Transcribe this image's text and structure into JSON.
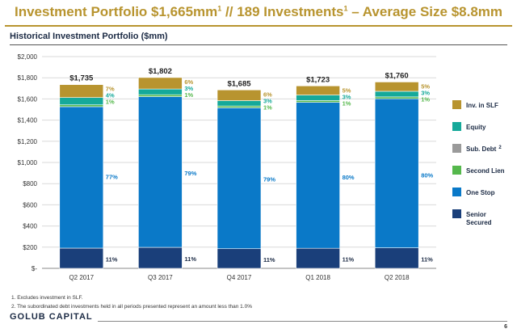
{
  "header": {
    "title_part1": "Investment Portfolio $1,665mm",
    "title_sup1": "1",
    "title_part2": " // 189 Investments",
    "title_sup2": "1",
    "title_part3": " – Average Size $8.8mm",
    "subtitle": "Historical Investment Portfolio ($mm)"
  },
  "chart_data": {
    "type": "bar",
    "stacked": true,
    "categories": [
      "Q2 2017",
      "Q3 2017",
      "Q4 2017",
      "Q1 2018",
      "Q2 2018"
    ],
    "totals": [
      1735,
      1802,
      1685,
      1723,
      1760
    ],
    "total_labels": [
      "$1,735",
      "$1,802",
      "$1,685",
      "$1,723",
      "$1,760"
    ],
    "ylim": [
      0,
      2000
    ],
    "yticks": [
      0,
      200,
      400,
      600,
      800,
      1000,
      1200,
      1400,
      1600,
      1800,
      2000
    ],
    "ytick_labels": [
      "$-",
      "$200",
      "$400",
      "$600",
      "$800",
      "$1,000",
      "$1,200",
      "$1,400",
      "$1,600",
      "$1,800",
      "$2,000"
    ],
    "series": [
      {
        "name": "Senior Secured",
        "color": "#1a3f7a",
        "percents": [
          11,
          11,
          11,
          11,
          11
        ],
        "labels": [
          "11%",
          "11%",
          "11%",
          "11%",
          "11%"
        ],
        "label_color": "#1b2a44"
      },
      {
        "name": "One Stop",
        "color": "#0a79c8",
        "percents": [
          77,
          79,
          79,
          80,
          80
        ],
        "labels": [
          "77%",
          "79%",
          "79%",
          "80%",
          "80%"
        ],
        "label_color": "#0a79c8"
      },
      {
        "name": "Second Lien",
        "color": "#55b84c",
        "percents": [
          1,
          1,
          1,
          1,
          1
        ],
        "labels": [
          "1%",
          "1%",
          "1%",
          "1%",
          "1%"
        ],
        "label_color": "#55b84c"
      },
      {
        "name": "Sub. Debt",
        "legend_sup": "2",
        "color": "#9a9a9a",
        "percents": [
          0,
          0,
          0,
          0,
          0
        ],
        "labels": [
          "",
          "",
          "",
          "",
          ""
        ],
        "label_color": "#9a9a9a"
      },
      {
        "name": "Equity",
        "color": "#15a99a",
        "percents": [
          4,
          3,
          3,
          3,
          3
        ],
        "labels": [
          "4%",
          "3%",
          "3%",
          "3%",
          "3%"
        ],
        "label_color": "#15a99a"
      },
      {
        "name": "Inv. in SLF",
        "color": "#b8942f",
        "percents": [
          7,
          6,
          6,
          5,
          5
        ],
        "labels": [
          "7%",
          "6%",
          "6%",
          "5%",
          "5%"
        ],
        "label_color": "#b8942f"
      }
    ],
    "legend_order": [
      "Inv. in SLF",
      "Equity",
      "Sub. Debt",
      "Second Lien",
      "One Stop",
      "Senior Secured"
    ],
    "legend_position": "right",
    "grid": true
  },
  "footnotes": [
    "1.  Excludes investment in SLF.",
    "2.  The subordinated debt investments held in all periods presented represent an amount less than 1.0%"
  ],
  "footer": {
    "brand": "GOLUB CAPITAL",
    "page_number": "6"
  }
}
